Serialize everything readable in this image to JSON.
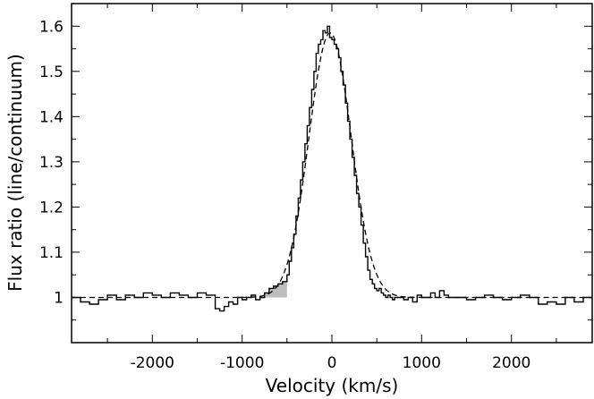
{
  "chart_data": {
    "type": "line",
    "xlabel": "Velocity (km/s)",
    "ylabel": "Flux ratio (line/continuum)",
    "xlim": [
      -2900,
      2900
    ],
    "ylim": [
      0.9,
      1.65
    ],
    "xticks": [
      -2000,
      -1000,
      0,
      1000,
      2000
    ],
    "xtick_labels": [
      "-2000",
      "-1000",
      "0",
      "1000",
      "2000"
    ],
    "yticks": [
      1.0,
      1.1,
      1.2,
      1.3,
      1.4,
      1.5,
      1.6
    ],
    "ytick_labels": [
      "1",
      "1.1",
      "1.2",
      "1.3",
      "1.4",
      "1.5",
      "1.6"
    ],
    "grid": false,
    "series": [
      {
        "style": "step-solid",
        "color": "#000000",
        "x": [
          -2900,
          -2800,
          -2700,
          -2600,
          -2500,
          -2400,
          -2300,
          -2200,
          -2100,
          -2000,
          -1900,
          -1800,
          -1700,
          -1600,
          -1500,
          -1400,
          -1300,
          -1250,
          -1200,
          -1150,
          -1100,
          -1050,
          -1000,
          -950,
          -900,
          -850,
          -800,
          -750,
          -700,
          -650,
          -600,
          -550,
          -500,
          -475,
          -450,
          -425,
          -400,
          -375,
          -350,
          -325,
          -300,
          -275,
          -250,
          -225,
          -200,
          -175,
          -150,
          -125,
          -100,
          -75,
          -50,
          -25,
          0,
          25,
          50,
          75,
          100,
          125,
          150,
          175,
          200,
          225,
          250,
          275,
          300,
          325,
          350,
          375,
          400,
          425,
          450,
          475,
          500,
          525,
          550,
          575,
          600,
          625,
          650,
          675,
          700,
          750,
          800,
          850,
          900,
          950,
          1000,
          1050,
          1100,
          1150,
          1200,
          1250,
          1300,
          1400,
          1500,
          1600,
          1700,
          1800,
          1900,
          2000,
          2100,
          2200,
          2300,
          2400,
          2500,
          2600,
          2700,
          2800
        ],
        "y": [
          1.0,
          0.99,
          0.985,
          0.995,
          1.005,
          0.995,
          1.005,
          1.0,
          1.01,
          1.005,
          1.0,
          1.01,
          1.005,
          1.0,
          1.01,
          1.005,
          0.975,
          0.97,
          0.98,
          0.99,
          0.985,
          1.0,
          0.995,
          1.0,
          1.005,
          0.995,
          1.0,
          1.01,
          1.02,
          1.025,
          1.03,
          1.035,
          1.05,
          1.08,
          1.11,
          1.14,
          1.18,
          1.22,
          1.26,
          1.3,
          1.34,
          1.38,
          1.42,
          1.46,
          1.5,
          1.54,
          1.56,
          1.57,
          1.59,
          1.585,
          1.6,
          1.575,
          1.57,
          1.56,
          1.55,
          1.53,
          1.5,
          1.47,
          1.43,
          1.39,
          1.35,
          1.31,
          1.27,
          1.23,
          1.2,
          1.16,
          1.12,
          1.09,
          1.06,
          1.04,
          1.03,
          1.02,
          1.015,
          1.02,
          1.01,
          1.005,
          1.0,
          1.005,
          1.0,
          0.995,
          1.0,
          1.0,
          0.995,
          1.0,
          0.99,
          1.005,
          1.0,
          1.0,
          1.01,
          1.0,
          1.015,
          1.005,
          1.0,
          1.0,
          0.995,
          1.0,
          1.005,
          1.0,
          0.995,
          1.0,
          1.005,
          1.0,
          0.985,
          0.99,
          0.985,
          1.0,
          0.99,
          1.0
        ]
      },
      {
        "style": "dashed-fit",
        "color": "#000000",
        "amplitude": 0.585,
        "center": -20,
        "sigma": 235,
        "baseline": 1.0
      }
    ],
    "shaded_region": {
      "x": [
        -900,
        -500
      ],
      "color": "#bdbdbd"
    }
  }
}
